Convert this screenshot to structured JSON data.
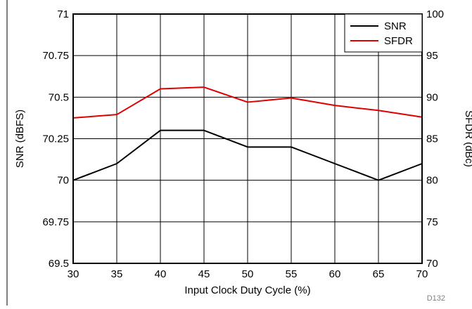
{
  "chart_data": {
    "type": "line",
    "xlabel": "Input Clock Duty Cycle (%)",
    "ylabel_left": "SNR (dBFS)",
    "ylabel_right": "SFDR (dBc)",
    "x": [
      30,
      35,
      40,
      45,
      50,
      55,
      60,
      65,
      70
    ],
    "xlim": [
      30,
      70
    ],
    "ylim_left": [
      69.5,
      71
    ],
    "ylim_right": [
      70,
      100
    ],
    "x_ticks": [
      "30",
      "35",
      "40",
      "45",
      "50",
      "55",
      "60",
      "65",
      "70"
    ],
    "y_left_ticks": [
      "69.5",
      "69.75",
      "70",
      "70.25",
      "70.5",
      "70.75",
      "71"
    ],
    "y_right_ticks": [
      "70",
      "75",
      "80",
      "85",
      "90",
      "95",
      "100"
    ],
    "grid": true,
    "legend_position": "top-right",
    "series": [
      {
        "name": "SNR",
        "axis": "left",
        "color": "#000000",
        "values": [
          70.0,
          70.1,
          70.3,
          70.3,
          70.2,
          70.2,
          70.1,
          70.0,
          70.1
        ]
      },
      {
        "name": "SFDR",
        "axis": "right",
        "color": "#e00000",
        "values": [
          87.5,
          87.9,
          91.0,
          91.2,
          89.4,
          89.9,
          89.0,
          88.4,
          87.6
        ]
      }
    ],
    "footnote": "D132"
  }
}
